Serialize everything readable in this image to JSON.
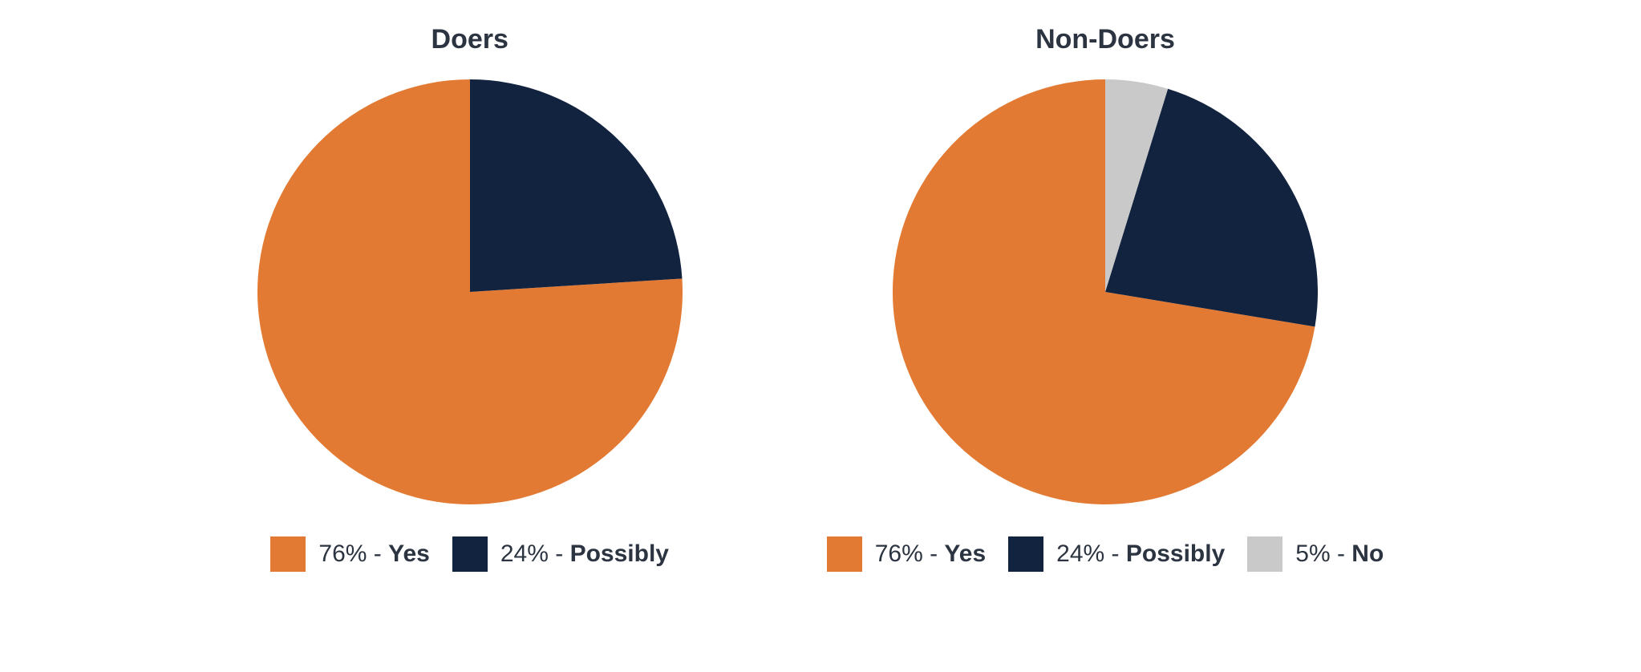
{
  "layout": {
    "background_color": "#ffffff",
    "text_color": "#2b3440",
    "title_fontsize": 34,
    "legend_fontsize": 30,
    "swatch_size": 44,
    "pie_diameter": 530,
    "start_angle_deg": 0,
    "direction": "counterclockwise"
  },
  "charts": [
    {
      "id": "doers",
      "title": "Doers",
      "type": "pie",
      "slices": [
        {
          "label": "Yes",
          "value": 76,
          "display": "76%",
          "color": "#e37a33"
        },
        {
          "label": "Possibly",
          "value": 24,
          "display": "24%",
          "color": "#12233f"
        }
      ]
    },
    {
      "id": "non-doers",
      "title": "Non-Doers",
      "type": "pie",
      "slices": [
        {
          "label": "Yes",
          "value": 76,
          "display": "76%",
          "color": "#e37a33"
        },
        {
          "label": "Possibly",
          "value": 24,
          "display": "24%",
          "color": "#12233f"
        },
        {
          "label": "No",
          "value": 5,
          "display": "5%",
          "color": "#c9c9c9"
        }
      ]
    }
  ]
}
